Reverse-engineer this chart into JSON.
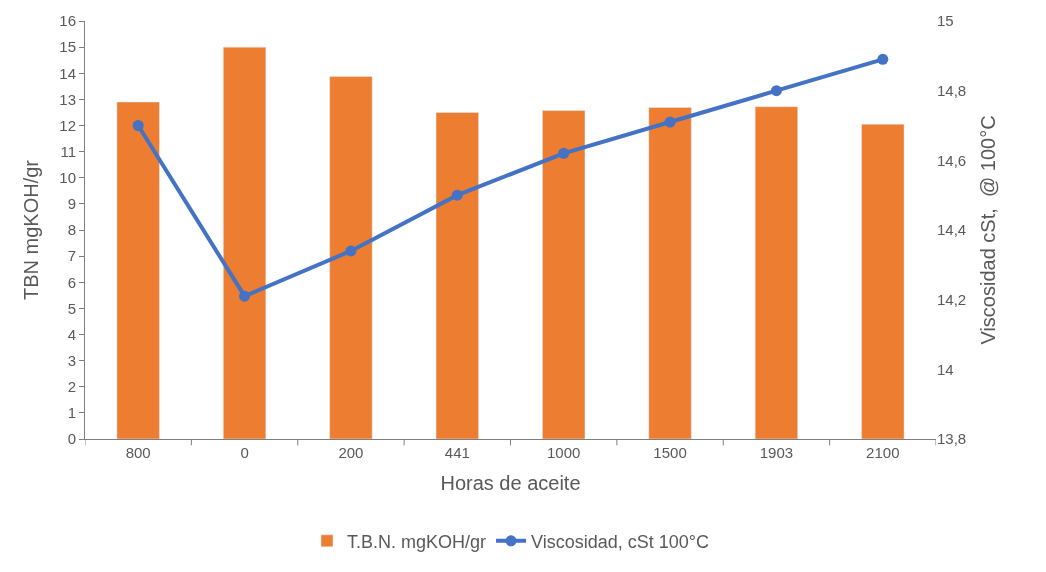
{
  "chart_data": {
    "type": "bar",
    "xlabel": "Horas de aceite",
    "ylabel": "TBN mgKOH/gr",
    "y2label": "Viscosidad cSt,  @ 100°C",
    "categories": [
      "800",
      "0",
      "200",
      "441",
      "1000",
      "1500",
      "1903",
      "2100"
    ],
    "series": [
      {
        "name": "T.B.N. mgKOH/gr",
        "color": "#ed7d31",
        "values": [
          12.9,
          15.0,
          13.88,
          12.5,
          12.57,
          12.69,
          12.72,
          12.05
        ]
      },
      {
        "name": "Viscosidad, cSt 100°C",
        "type": "line",
        "axis": "y2",
        "color": "#4472c4",
        "values": [
          14.7,
          14.21,
          14.34,
          14.5,
          14.62,
          14.71,
          14.8,
          14.89
        ]
      }
    ],
    "ylim": [
      0,
      16
    ],
    "yticks": [
      0,
      1,
      2,
      3,
      4,
      5,
      6,
      7,
      8,
      9,
      10,
      11,
      12,
      13,
      14,
      15,
      16
    ],
    "y2lim": [
      13.8,
      15
    ],
    "y2ticks": [
      {
        "value": 13.8,
        "label": "13,8"
      },
      {
        "value": 14.0,
        "label": "14"
      },
      {
        "value": 14.2,
        "label": "14,2"
      },
      {
        "value": 14.4,
        "label": "14,4"
      },
      {
        "value": 14.6,
        "label": "14,6"
      },
      {
        "value": 14.8,
        "label": "14,8"
      },
      {
        "value": 15.0,
        "label": "15"
      }
    ],
    "legend": "bottom",
    "marker": "circle",
    "line_style": "solid"
  }
}
